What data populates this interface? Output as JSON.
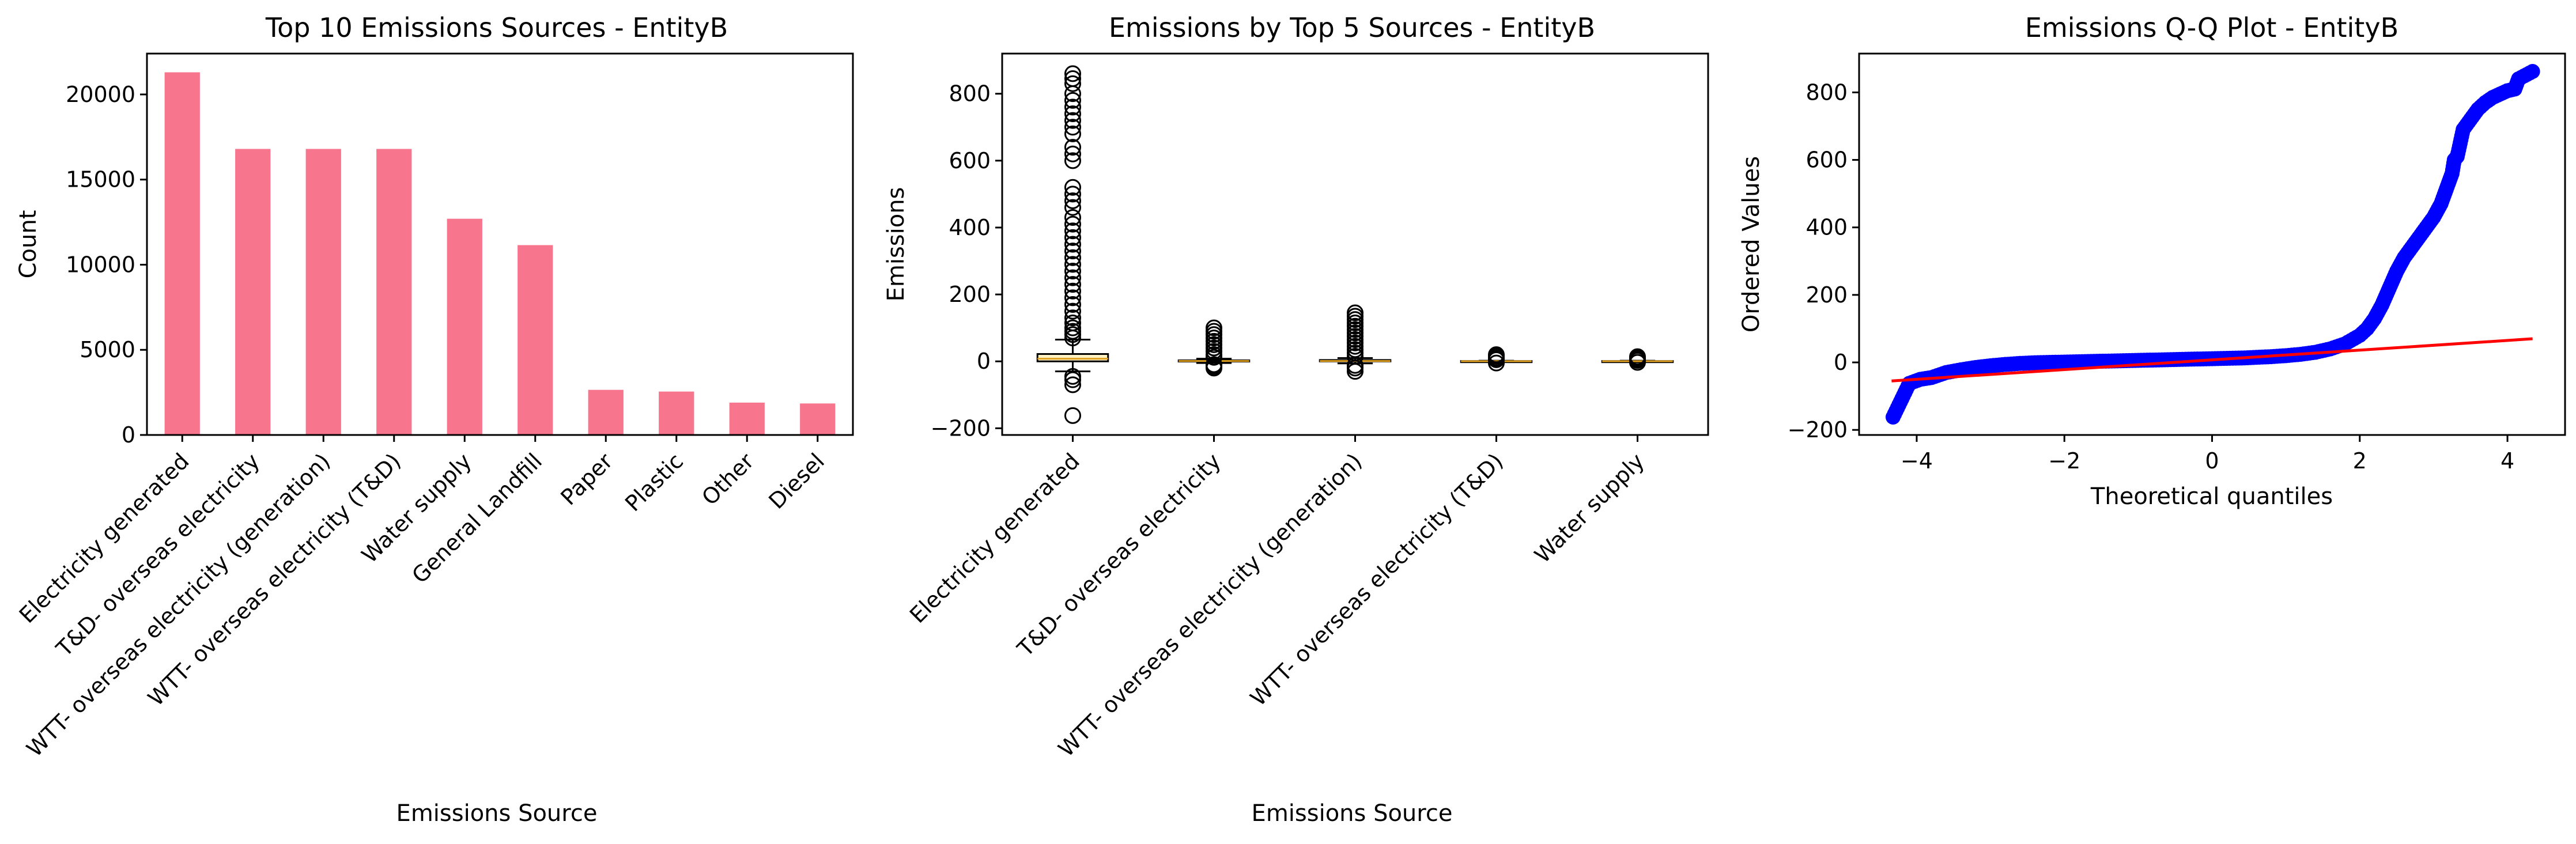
{
  "chart_data": [
    {
      "type": "bar",
      "title": "Top 10 Emissions Sources - EntityB",
      "xlabel": "Emissions Source",
      "ylabel": "Count",
      "categories": [
        "Electricity generated",
        "T&D- overseas electricity",
        "WTT- overseas electricity (generation)",
        "WTT- overseas electricity (T&D)",
        "Water supply",
        "General Landfill",
        "Paper",
        "Plastic",
        "Other",
        "Diesel"
      ],
      "values": [
        21300,
        16800,
        16800,
        16800,
        12700,
        11150,
        2650,
        2550,
        1900,
        1850
      ],
      "ylim": [
        0,
        22400
      ],
      "yticks": [
        0,
        5000,
        10000,
        15000,
        20000
      ],
      "ytick_labels": [
        "0",
        "5000",
        "10000",
        "15000",
        "20000"
      ],
      "bar_color": "#f7768e",
      "grid": false,
      "legend": "none"
    },
    {
      "type": "box",
      "title": "Emissions by Top 5 Sources - EntityB",
      "xlabel": "Emissions Source",
      "ylabel": "Emissions",
      "categories": [
        "Electricity generated",
        "T&D- overseas electricity",
        "WTT- overseas electricity (generation)",
        "WTT- overseas electricity (T&D)",
        "Water supply"
      ],
      "boxes": [
        {
          "whisker_low": -30,
          "q1": 0,
          "median": 8,
          "q3": 22,
          "whisker_high": 65,
          "outliers": [
            -162,
            -70,
            -55,
            -45,
            70,
            80,
            90,
            100,
            115,
            130,
            150,
            170,
            190,
            210,
            230,
            250,
            270,
            290,
            310,
            330,
            350,
            370,
            390,
            410,
            430,
            460,
            480,
            500,
            520,
            600,
            620,
            640,
            680,
            700,
            720,
            740,
            760,
            780,
            800,
            830,
            845,
            860
          ]
        },
        {
          "whisker_low": -5,
          "q1": 0,
          "median": 1,
          "q3": 3,
          "whisker_high": 8,
          "outliers": [
            -20,
            -15,
            -10,
            12,
            20,
            30,
            40,
            50,
            60,
            70,
            80,
            90,
            100
          ]
        },
        {
          "whisker_low": -6,
          "q1": 0,
          "median": 1,
          "q3": 4,
          "whisker_high": 10,
          "outliers": [
            -30,
            -20,
            -12,
            15,
            25,
            35,
            45,
            55,
            65,
            75,
            85,
            95,
            105,
            115,
            125,
            135,
            145
          ]
        },
        {
          "whisker_low": -1,
          "q1": 0,
          "median": 0.5,
          "q3": 1,
          "whisker_high": 2,
          "outliers": [
            -5,
            5,
            10,
            15,
            20
          ]
        },
        {
          "whisker_low": -1,
          "q1": 0,
          "median": 0.5,
          "q3": 1,
          "whisker_high": 2,
          "outliers": [
            -3,
            3,
            6,
            10,
            14
          ]
        }
      ],
      "ylim": [
        -220,
        920
      ],
      "yticks": [
        -200,
        0,
        200,
        400,
        600,
        800
      ],
      "ytick_labels": [
        "−200",
        "0",
        "200",
        "400",
        "600",
        "800"
      ],
      "box_face": "#fff3c4",
      "median_color": "#e0a020",
      "grid": false,
      "legend": "none"
    },
    {
      "type": "scatter",
      "title": "Emissions Q-Q Plot - EntityB",
      "xlabel": "Theoretical quantiles",
      "ylabel": "Ordered Values",
      "points": [
        [
          -4.32,
          -162
        ],
        [
          -4.1,
          -62
        ],
        [
          -3.95,
          -50
        ],
        [
          -3.8,
          -45
        ],
        [
          -3.6,
          -30
        ],
        [
          -3.4,
          -22
        ],
        [
          -3.2,
          -15
        ],
        [
          -3.0,
          -10
        ],
        [
          -2.8,
          -6
        ],
        [
          -2.6,
          -3
        ],
        [
          -2.4,
          -1
        ],
        [
          -2.2,
          0
        ],
        [
          -2.0,
          1
        ],
        [
          -1.8,
          2
        ],
        [
          -1.6,
          3
        ],
        [
          -1.4,
          4
        ],
        [
          -1.2,
          5
        ],
        [
          -1.0,
          6
        ],
        [
          -0.8,
          7
        ],
        [
          -0.6,
          8
        ],
        [
          -0.4,
          9
        ],
        [
          -0.2,
          10
        ],
        [
          0.0,
          11
        ],
        [
          0.2,
          12
        ],
        [
          0.4,
          13
        ],
        [
          0.6,
          15
        ],
        [
          0.8,
          17
        ],
        [
          1.0,
          20
        ],
        [
          1.2,
          24
        ],
        [
          1.4,
          30
        ],
        [
          1.6,
          40
        ],
        [
          1.8,
          55
        ],
        [
          2.0,
          80
        ],
        [
          2.1,
          100
        ],
        [
          2.2,
          130
        ],
        [
          2.3,
          170
        ],
        [
          2.4,
          220
        ],
        [
          2.5,
          270
        ],
        [
          2.6,
          310
        ],
        [
          2.7,
          340
        ],
        [
          2.8,
          370
        ],
        [
          2.9,
          400
        ],
        [
          3.0,
          430
        ],
        [
          3.1,
          470
        ],
        [
          3.2,
          530
        ],
        [
          3.25,
          560
        ],
        [
          3.28,
          600
        ],
        [
          3.32,
          610
        ],
        [
          3.36,
          650
        ],
        [
          3.4,
          690
        ],
        [
          3.5,
          720
        ],
        [
          3.6,
          750
        ],
        [
          3.7,
          770
        ],
        [
          3.8,
          785
        ],
        [
          3.9,
          795
        ],
        [
          4.0,
          805
        ],
        [
          4.1,
          810
        ],
        [
          4.15,
          840
        ],
        [
          4.34,
          862
        ]
      ],
      "fit_line": [
        [
          -4.34,
          -55
        ],
        [
          4.34,
          70
        ]
      ],
      "xlim": [
        -4.78,
        4.78
      ],
      "ylim": [
        -215,
        915
      ],
      "xticks": [
        -4,
        -2,
        0,
        2,
        4
      ],
      "xtick_labels": [
        "−4",
        "−2",
        "0",
        "2",
        "4"
      ],
      "yticks": [
        -200,
        0,
        200,
        400,
        600,
        800
      ],
      "ytick_labels": [
        "−200",
        "0",
        "200",
        "400",
        "600",
        "800"
      ],
      "point_color": "#0000ff",
      "line_color": "#ff0000",
      "grid": false,
      "legend": "none"
    }
  ]
}
